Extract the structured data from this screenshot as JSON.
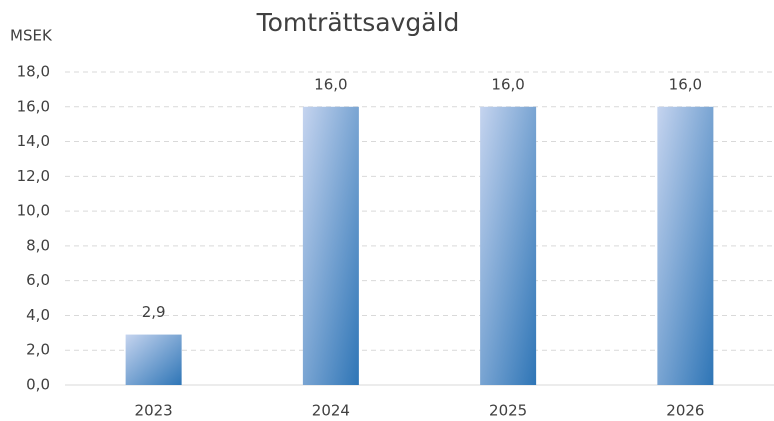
{
  "chart_data": {
    "type": "bar",
    "title": "Tomträttsavgäld",
    "y_label": "MSEK",
    "categories": [
      "2023",
      "2024",
      "2025",
      "2026"
    ],
    "values": [
      2.9,
      16,
      16,
      16
    ],
    "value_labels": [
      "2,9",
      "16,0",
      "16,0",
      "16,0"
    ],
    "color": "#2e75b6",
    "ylim": [
      0,
      18
    ],
    "yticks": [
      {
        "value": 0,
        "label": "0,0"
      },
      {
        "value": 2,
        "label": "2,0"
      },
      {
        "value": 4,
        "label": "4,0"
      },
      {
        "value": 6,
        "label": "6,0"
      },
      {
        "value": 8,
        "label": "8,0"
      },
      {
        "value": 10,
        "label": "10,0"
      },
      {
        "value": 12,
        "label": "12,0"
      },
      {
        "value": 14,
        "label": "14,0"
      },
      {
        "value": 16,
        "label": "16,0"
      },
      {
        "value": 18,
        "label": "18,0"
      }
    ],
    "grid": true
  }
}
